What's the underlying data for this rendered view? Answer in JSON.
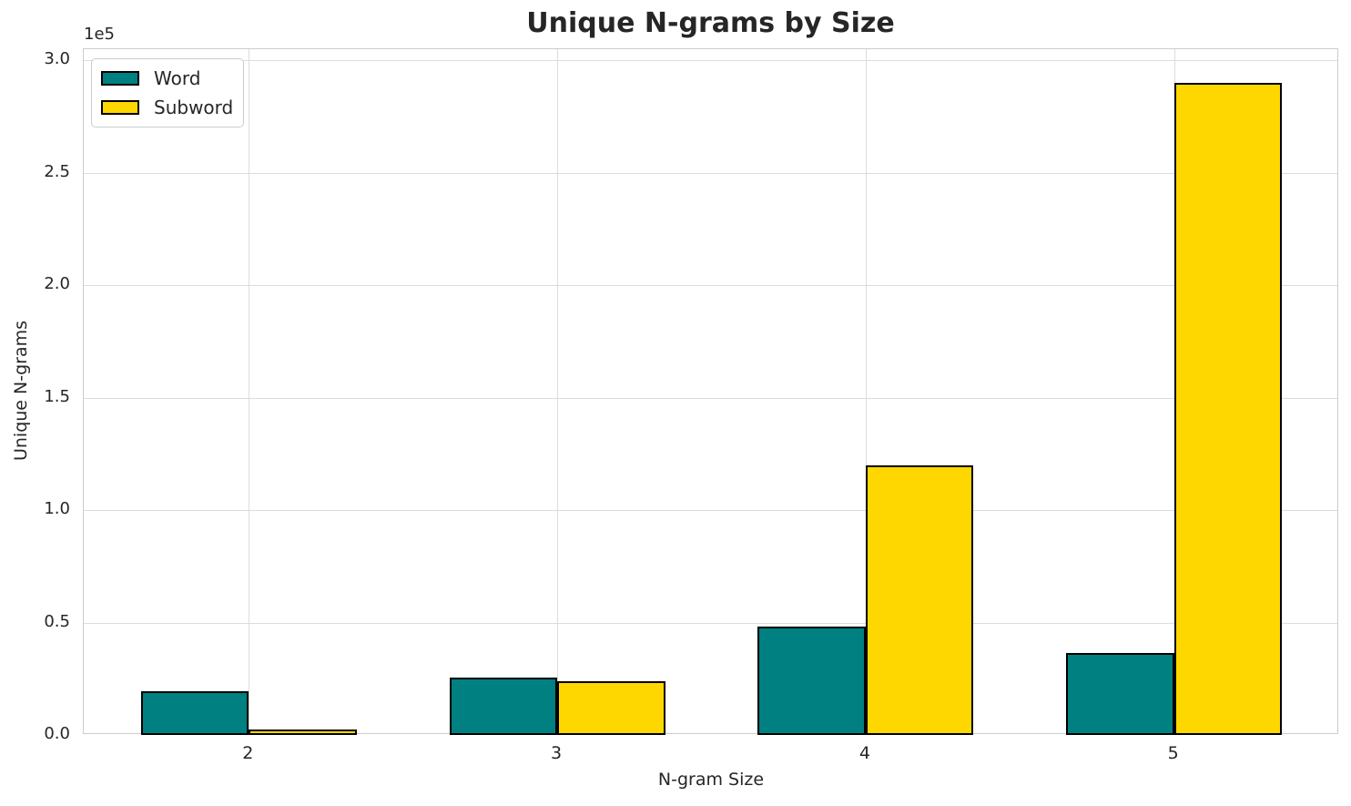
{
  "chart_data": {
    "type": "bar",
    "title": "Unique N-grams by Size",
    "xlabel": "N-gram Size",
    "ylabel": "Unique N-grams",
    "y_offset_label": "1e5",
    "categories": [
      "2",
      "3",
      "4",
      "5"
    ],
    "series": [
      {
        "name": "Word",
        "color": "#008080",
        "values": [
          19500,
          25500,
          48000,
          36500
        ]
      },
      {
        "name": "Subword",
        "color": "#FFD700",
        "values": [
          2500,
          24000,
          120000,
          290000
        ]
      }
    ],
    "bar_edge_color": "#000000",
    "ylim": [
      0,
      305000
    ],
    "yticks": [
      0,
      50000,
      100000,
      150000,
      200000,
      250000,
      300000
    ],
    "ytick_labels": [
      "0.0",
      "0.5",
      "1.0",
      "1.5",
      "2.0",
      "2.5",
      "3.0"
    ],
    "grid": true,
    "grid_color": "#dcdcdc",
    "legend_position": "upper left"
  }
}
